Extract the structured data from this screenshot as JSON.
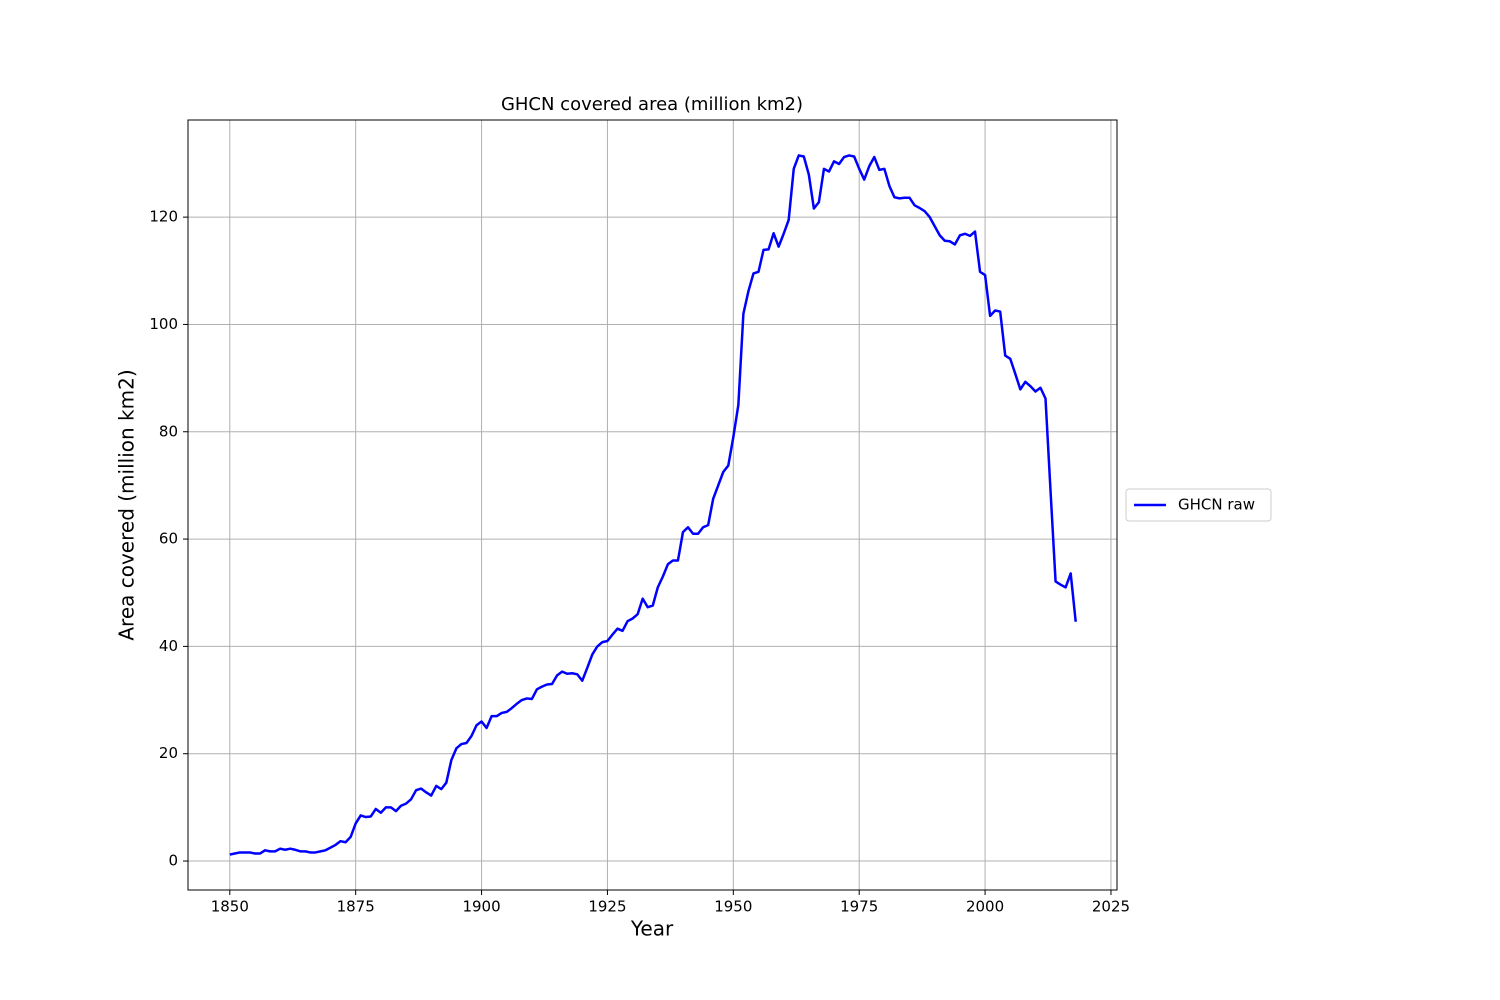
{
  "chart_data": {
    "type": "line",
    "title": "GHCN covered area (million km2)",
    "x_label": "Year",
    "y_label": "Area covered (million km2)",
    "x": [
      1850,
      1851,
      1852,
      1853,
      1854,
      1855,
      1856,
      1857,
      1858,
      1859,
      1860,
      1861,
      1862,
      1863,
      1864,
      1865,
      1866,
      1867,
      1868,
      1869,
      1870,
      1871,
      1872,
      1873,
      1874,
      1875,
      1876,
      1877,
      1878,
      1879,
      1880,
      1881,
      1882,
      1883,
      1884,
      1885,
      1886,
      1887,
      1888,
      1889,
      1890,
      1891,
      1892,
      1893,
      1894,
      1895,
      1896,
      1897,
      1898,
      1899,
      1900,
      1901,
      1902,
      1903,
      1904,
      1905,
      1906,
      1907,
      1908,
      1909,
      1910,
      1911,
      1912,
      1913,
      1914,
      1915,
      1916,
      1917,
      1918,
      1919,
      1920,
      1921,
      1922,
      1923,
      1924,
      1925,
      1926,
      1927,
      1928,
      1929,
      1930,
      1931,
      1932,
      1933,
      1934,
      1935,
      1936,
      1937,
      1938,
      1939,
      1940,
      1941,
      1942,
      1943,
      1944,
      1945,
      1946,
      1947,
      1948,
      1949,
      1950,
      1951,
      1952,
      1953,
      1954,
      1955,
      1956,
      1957,
      1958,
      1959,
      1960,
      1961,
      1962,
      1963,
      1964,
      1965,
      1966,
      1967,
      1968,
      1969,
      1970,
      1971,
      1972,
      1973,
      1974,
      1975,
      1976,
      1977,
      1978,
      1979,
      1980,
      1981,
      1982,
      1983,
      1984,
      1985,
      1986,
      1987,
      1988,
      1989,
      1990,
      1991,
      1992,
      1993,
      1994,
      1995,
      1996,
      1997,
      1998,
      1999,
      2000,
      2001,
      2002,
      2003,
      2004,
      2005,
      2006,
      2007,
      2008,
      2009,
      2010,
      2011,
      2012,
      2013,
      2014,
      2015,
      2016,
      2017,
      2018
    ],
    "series": [
      {
        "name": "GHCN raw",
        "color": "#0000ff",
        "values": [
          1.2,
          1.4,
          1.6,
          1.6,
          1.6,
          1.4,
          1.4,
          2.0,
          1.8,
          1.8,
          2.3,
          2.1,
          2.3,
          2.1,
          1.8,
          1.8,
          1.6,
          1.6,
          1.8,
          2.0,
          2.5,
          3.0,
          3.7,
          3.5,
          4.5,
          7.0,
          8.5,
          8.2,
          8.3,
          9.7,
          9.0,
          10.0,
          10.0,
          9.3,
          10.3,
          10.7,
          11.5,
          13.2,
          13.5,
          12.8,
          12.2,
          14.0,
          13.4,
          14.6,
          18.8,
          21.0,
          21.8,
          22.0,
          23.3,
          25.3,
          26.0,
          24.8,
          27.0,
          27.0,
          27.6,
          27.8,
          28.5,
          29.3,
          30.0,
          30.3,
          30.2,
          32.0,
          32.5,
          32.9,
          33.0,
          34.6,
          35.3,
          34.9,
          35.0,
          34.8,
          33.6,
          36.0,
          38.5,
          40.0,
          40.8,
          41.0,
          42.2,
          43.3,
          42.9,
          44.7,
          45.2,
          46.0,
          48.9,
          47.3,
          47.6,
          51.0,
          53.0,
          55.3,
          56.0,
          56.0,
          61.3,
          62.2,
          61.0,
          61.0,
          62.2,
          62.6,
          67.5,
          70.0,
          72.5,
          73.7,
          79.0,
          85.0,
          102.0,
          106.2,
          109.5,
          109.8,
          113.9,
          114.0,
          117.0,
          114.5,
          116.9,
          119.5,
          129.0,
          131.5,
          131.3,
          127.9,
          121.6,
          122.8,
          129.0,
          128.5,
          130.4,
          129.9,
          131.2,
          131.5,
          131.3,
          129.0,
          127.0,
          129.5,
          131.2,
          128.8,
          129.0,
          125.8,
          123.7,
          123.5,
          123.6,
          123.6,
          122.2,
          121.7,
          121.1,
          120.0,
          118.3,
          116.6,
          115.6,
          115.5,
          114.9,
          116.6,
          116.9,
          116.5,
          117.3,
          109.8,
          109.2,
          101.6,
          102.6,
          102.4,
          94.2,
          93.6,
          90.8,
          87.9,
          89.3,
          88.5,
          87.5,
          88.2,
          86.2,
          69.0,
          52.1,
          51.5,
          51.0,
          53.6,
          44.6
        ]
      }
    ],
    "xlim": [
      1841.7,
      2026.2
    ],
    "ylim": [
      -5.4,
      138.1
    ],
    "xticks": [
      1850,
      1875,
      1900,
      1925,
      1950,
      1975,
      2000,
      2025
    ],
    "yticks": [
      0,
      20,
      40,
      60,
      80,
      100,
      120
    ],
    "grid": true,
    "legend": "right"
  }
}
